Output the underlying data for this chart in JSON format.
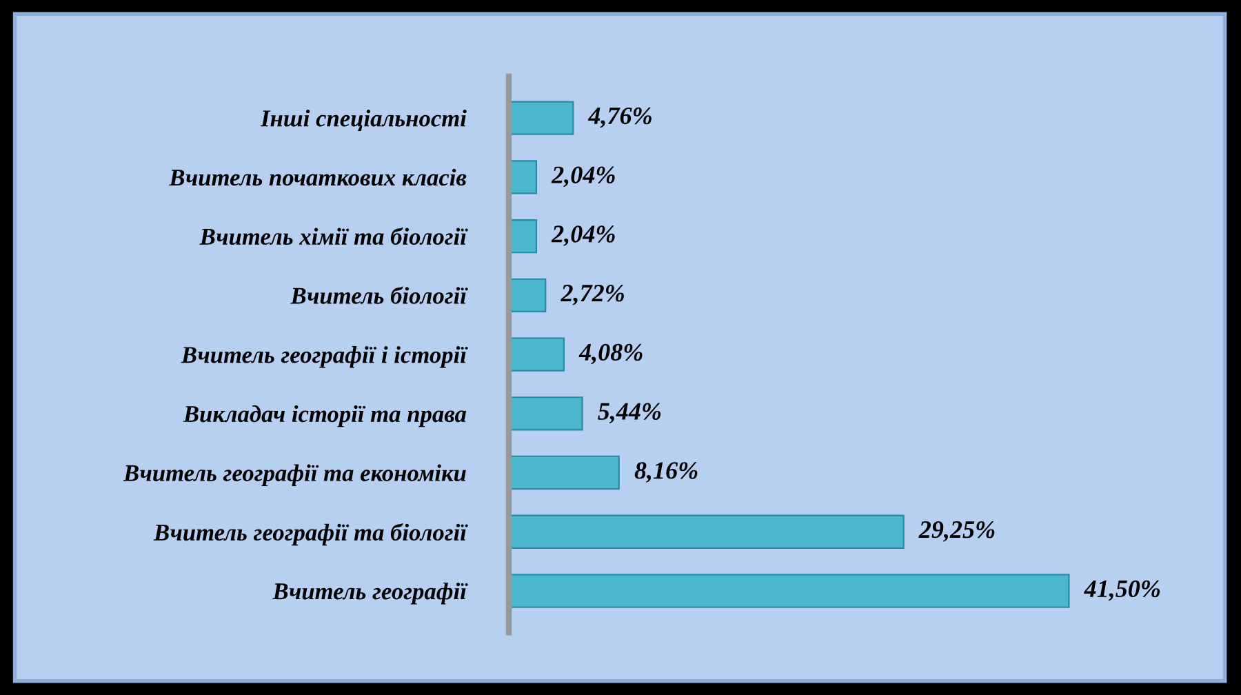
{
  "chart_data": {
    "type": "bar",
    "orientation": "horizontal",
    "categories": [
      "Інші спеціальності",
      "Вчитель початкових класів",
      "Вчитель хімії та біології",
      "Вчитель біології",
      "Вчитель географії і історії",
      "Викладач історії та права",
      "Вчитель географії та економіки",
      "Вчитель географії та біології",
      "Вчитель географії"
    ],
    "values": [
      4.76,
      2.04,
      2.04,
      2.72,
      4.08,
      5.44,
      8.16,
      29.25,
      41.5
    ],
    "value_labels": [
      "4,76%",
      "2,04%",
      "2,04%",
      "2,72%",
      "4,08%",
      "5,44%",
      "8,16%",
      "29,25%",
      "41,50%"
    ],
    "color": "#4bb8d0",
    "grid": false,
    "legend": false
  }
}
